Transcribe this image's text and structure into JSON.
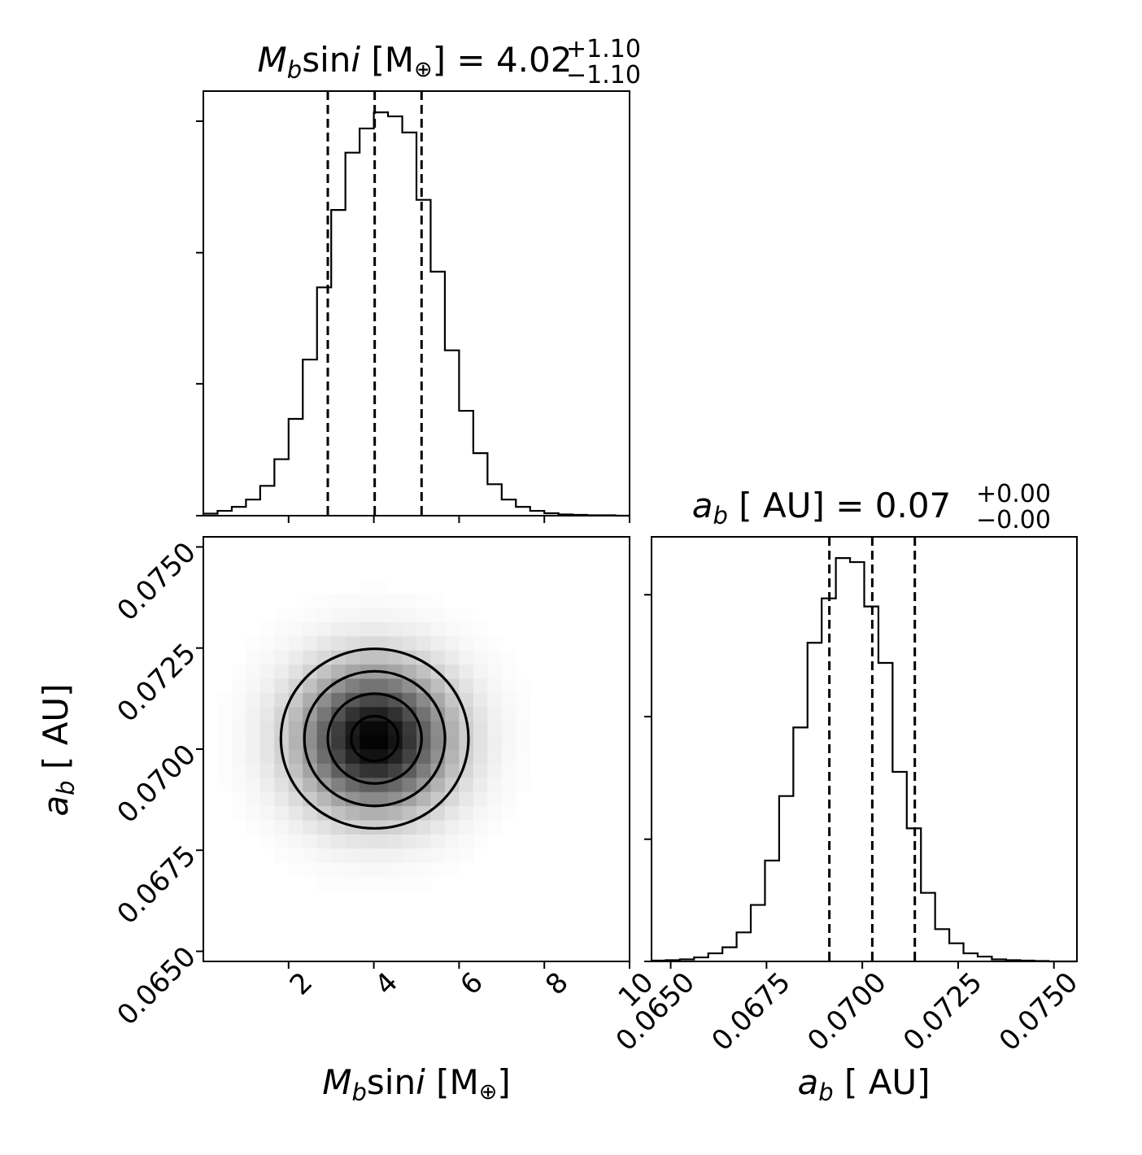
{
  "figure": {
    "type": "corner-plot",
    "panels": [
      "hist-mass",
      "hist-a",
      "density-mass-a"
    ]
  },
  "chart_data": [
    {
      "id": "hist_mass",
      "type": "bar",
      "title": {
        "var": "M",
        "sub": "b",
        "mid": "sin",
        "ital2": "i",
        "unit": " [M",
        "sym": "⊕",
        "close": "]",
        "eq": " = ",
        "value": "4.02",
        "plus": "+1.10",
        "minus": "−1.10"
      },
      "xlim": [
        0,
        10
      ],
      "xticks": [
        2,
        4,
        6,
        8,
        10
      ],
      "xtick_labels": [
        "2",
        "4",
        "6",
        "8",
        "10"
      ],
      "yticks": [
        0.0,
        0.327,
        0.652,
        0.978
      ],
      "bin_edges": [
        0,
        0.333,
        0.667,
        1.0,
        1.333,
        1.667,
        2.0,
        2.333,
        2.667,
        3.0,
        3.333,
        3.667,
        4.0,
        4.333,
        4.667,
        5.0,
        5.333,
        5.667,
        6.0,
        6.333,
        6.667,
        7.0,
        7.333,
        7.667,
        8.0,
        8.333,
        8.667,
        9.0,
        9.333,
        9.667,
        10.0
      ],
      "counts": [
        0.005,
        0.012,
        0.022,
        0.04,
        0.074,
        0.14,
        0.24,
        0.387,
        0.566,
        0.758,
        0.9,
        0.96,
        1.0,
        0.99,
        0.95,
        0.783,
        0.605,
        0.41,
        0.26,
        0.155,
        0.078,
        0.04,
        0.022,
        0.012,
        0.006,
        0.003,
        0.002,
        0.001,
        0.001,
        0.0
      ],
      "quantiles": [
        2.92,
        4.02,
        5.12
      ]
    },
    {
      "id": "hist_a",
      "type": "bar",
      "title": {
        "var": "a",
        "sub": "b",
        "unit": " [ AU]",
        "eq": " = ",
        "value": "0.07",
        "plus": "+0.00",
        "minus": "−0.00"
      },
      "xlim": [
        0.0645,
        0.0756
      ],
      "xticks": [
        0.065,
        0.0675,
        0.07,
        0.0725,
        0.075
      ],
      "xtick_labels": [
        "0.0650",
        "0.0675",
        "0.0700",
        "0.0725",
        "0.0750"
      ],
      "xlabel": {
        "var": "a",
        "sub": "b",
        "unit": " [ AU]"
      },
      "yticks": [
        0.0,
        0.303,
        0.607,
        0.909
      ],
      "bin_edges": [
        0.0645,
        0.06487,
        0.06524,
        0.06561,
        0.06598,
        0.06635,
        0.06672,
        0.06709,
        0.06746,
        0.06783,
        0.0682,
        0.06857,
        0.06894,
        0.06931,
        0.06968,
        0.07005,
        0.07042,
        0.07079,
        0.07116,
        0.07153,
        0.0719,
        0.07227,
        0.07264,
        0.07301,
        0.07338,
        0.07375,
        0.07412,
        0.07449,
        0.07486,
        0.07523,
        0.0756
      ],
      "counts": [
        0.002,
        0.003,
        0.005,
        0.01,
        0.02,
        0.035,
        0.072,
        0.14,
        0.25,
        0.41,
        0.58,
        0.79,
        0.9,
        1.0,
        0.99,
        0.88,
        0.74,
        0.47,
        0.33,
        0.17,
        0.08,
        0.045,
        0.02,
        0.012,
        0.005,
        0.003,
        0.002,
        0.001,
        0.0,
        0.0
      ],
      "quantiles": [
        0.06914,
        0.07026,
        0.07137
      ]
    },
    {
      "id": "density_mass_a",
      "type": "heatmap",
      "x_center": 4.02,
      "y_center": 0.07026,
      "x_sigma": 1.1,
      "y_sigma": 0.00111,
      "xlim": [
        0,
        10
      ],
      "ylim": [
        0.06475,
        0.07525
      ],
      "xticks": [
        2,
        4,
        6,
        8,
        10
      ],
      "xtick_labels": [
        "2",
        "4",
        "6",
        "8",
        "10"
      ],
      "yticks": [
        0.065,
        0.0675,
        0.07,
        0.0725,
        0.075
      ],
      "ytick_labels": [
        "0.0650",
        "0.0675",
        "0.0700",
        "0.0725",
        "0.0750"
      ],
      "xlabel": {
        "var": "M",
        "sub": "b",
        "mid": "sin",
        "ital2": "i",
        "unit": " [M",
        "sym": "⊕",
        "close": "]"
      },
      "ylabel": {
        "var": "a",
        "sub": "b",
        "unit": " [ AU]"
      },
      "contour_sigma_levels": [
        0.5,
        1.0,
        1.5,
        2.0
      ]
    }
  ]
}
